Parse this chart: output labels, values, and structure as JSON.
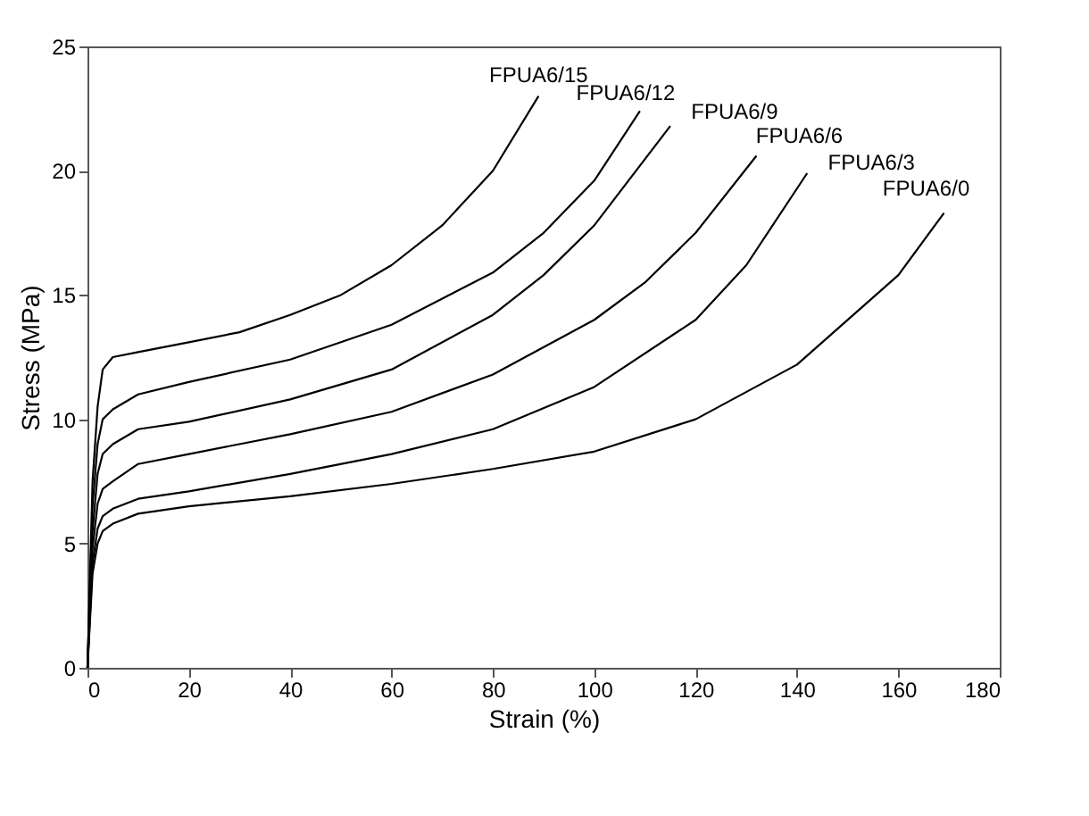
{
  "chart_data": {
    "type": "line",
    "xlabel": "Strain (%)",
    "ylabel": "Stress (MPa)",
    "xlim": [
      0,
      180
    ],
    "xticks": [
      0,
      20,
      40,
      60,
      80,
      100,
      120,
      140,
      160,
      180
    ],
    "ylim": [
      0,
      25
    ],
    "yticks": [
      0,
      5,
      10,
      15,
      20,
      25
    ],
    "grid": false,
    "marker": "none",
    "line_style": "solid",
    "series": [
      {
        "name": "FPUA6/15",
        "color": "#000000",
        "x": [
          0,
          1,
          2,
          3,
          5,
          10,
          20,
          30,
          40,
          50,
          60,
          70,
          80,
          89
        ],
        "values": [
          0,
          7.5,
          10.5,
          12.0,
          12.5,
          12.7,
          13.1,
          13.5,
          14.2,
          15.0,
          16.2,
          17.8,
          20.0,
          23.0
        ]
      },
      {
        "name": "FPUA6/12",
        "color": "#000000",
        "x": [
          0,
          1,
          2,
          3,
          5,
          10,
          20,
          40,
          60,
          80,
          90,
          100,
          109
        ],
        "values": [
          0,
          6.5,
          9.0,
          10.0,
          10.4,
          11.0,
          11.5,
          12.4,
          13.8,
          15.9,
          17.5,
          19.6,
          22.4
        ]
      },
      {
        "name": "FPUA6/9",
        "color": "#000000",
        "x": [
          0,
          1,
          2,
          3,
          5,
          10,
          20,
          40,
          60,
          80,
          90,
          100,
          115
        ],
        "values": [
          0,
          5.5,
          7.8,
          8.6,
          9.0,
          9.6,
          9.9,
          10.8,
          12.0,
          14.2,
          15.8,
          17.8,
          21.8
        ]
      },
      {
        "name": "FPUA6/6",
        "color": "#000000",
        "x": [
          0,
          1,
          2,
          3,
          5,
          10,
          20,
          40,
          60,
          80,
          100,
          110,
          120,
          132
        ],
        "values": [
          0,
          4.8,
          6.6,
          7.2,
          7.5,
          8.2,
          8.6,
          9.4,
          10.3,
          11.8,
          14.0,
          15.5,
          17.5,
          20.6
        ]
      },
      {
        "name": "FPUA6/3",
        "color": "#000000",
        "x": [
          0,
          1,
          2,
          3,
          5,
          10,
          20,
          40,
          60,
          80,
          100,
          120,
          130,
          142
        ],
        "values": [
          0,
          4.2,
          5.6,
          6.1,
          6.4,
          6.8,
          7.1,
          7.8,
          8.6,
          9.6,
          11.3,
          14.0,
          16.2,
          19.9
        ]
      },
      {
        "name": "FPUA6/0",
        "color": "#000000",
        "x": [
          0,
          1,
          2,
          3,
          5,
          10,
          20,
          40,
          60,
          80,
          100,
          120,
          140,
          160,
          169
        ],
        "values": [
          0,
          3.8,
          5.0,
          5.5,
          5.8,
          6.2,
          6.5,
          6.9,
          7.4,
          8.0,
          8.7,
          10.0,
          12.2,
          15.8,
          18.3
        ]
      }
    ]
  }
}
